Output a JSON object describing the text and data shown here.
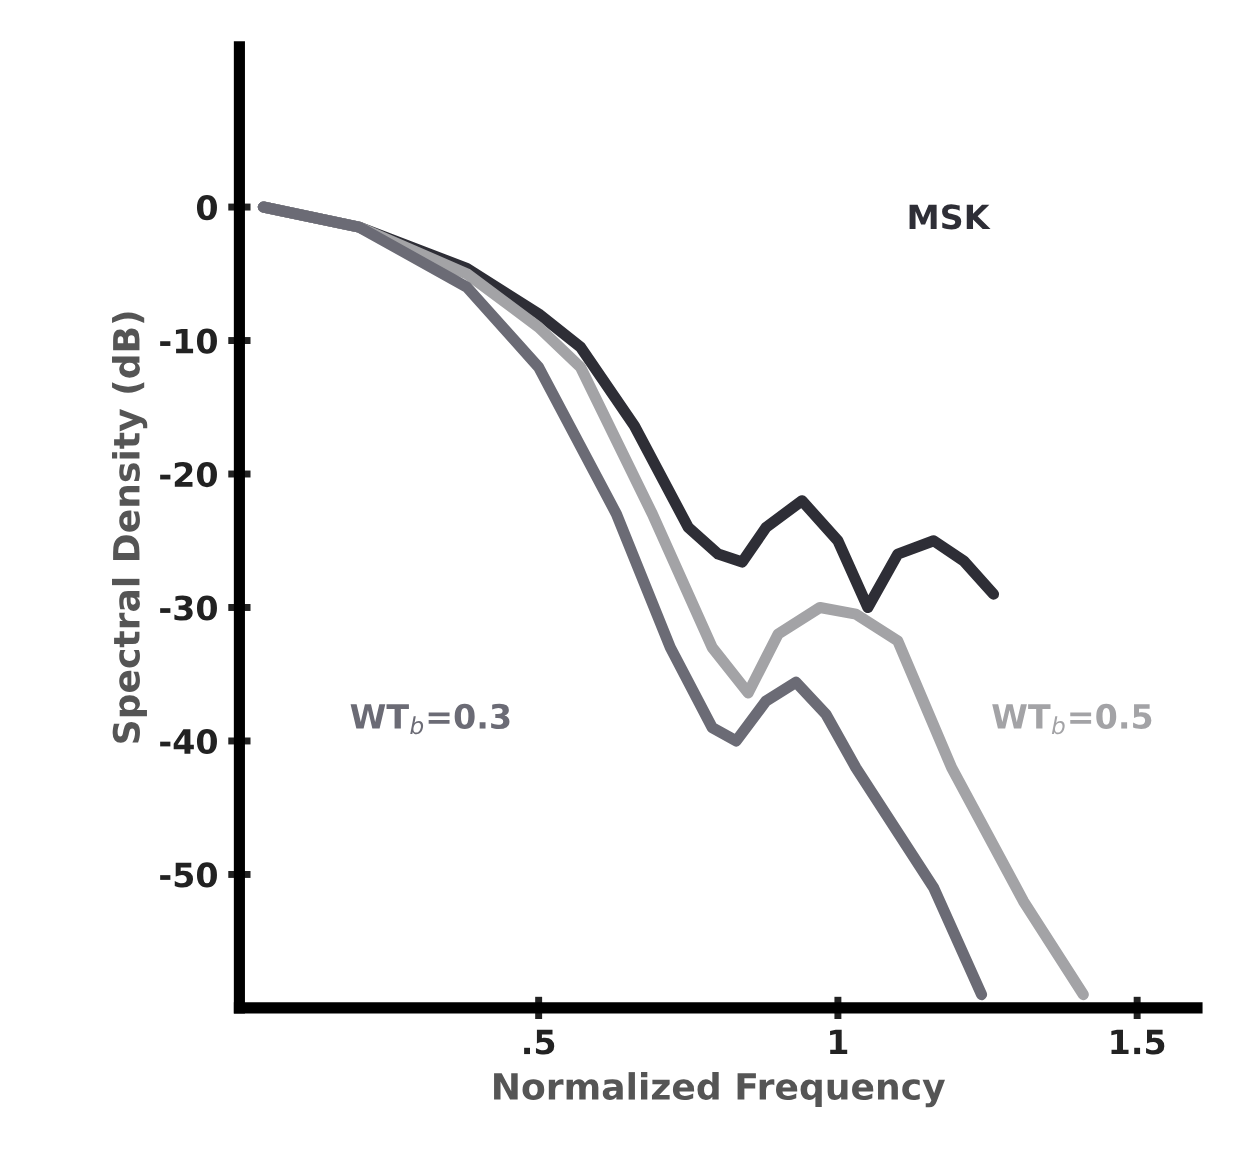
{
  "chart_data": {
    "type": "line",
    "xlabel": "Normalized Frequency",
    "ylabel": "Spectral Density (dB)",
    "xlim": [
      0,
      1.6
    ],
    "ylim": [
      -60,
      12
    ],
    "xticks": [
      {
        "value": 0.5,
        "label": ".5"
      },
      {
        "value": 1,
        "label": "1"
      },
      {
        "value": 1.5,
        "label": "1.5"
      }
    ],
    "yticks": [
      0,
      -10,
      -20,
      -30,
      -40,
      -50
    ],
    "grid": false,
    "legend": false,
    "marker": "none",
    "line_style": "solid",
    "series": [
      {
        "name": "MSK",
        "color": "#2e2e36",
        "x": [
          0.04,
          0.2,
          0.38,
          0.5,
          0.57,
          0.66,
          0.75,
          0.8,
          0.84,
          0.88,
          0.94,
          1.0,
          1.05,
          1.1,
          1.16,
          1.21,
          1.26
        ],
        "values": [
          0,
          -1.5,
          -4.6,
          -8,
          -10.5,
          -16.4,
          -24,
          -26,
          -26.6,
          -24,
          -22,
          -25,
          -30,
          -26,
          -25,
          -26.5,
          -29
        ]
      },
      {
        "name": "WT$_{b}$=0.5",
        "color": "#a3a3a6",
        "x": [
          0.04,
          0.2,
          0.38,
          0.5,
          0.57,
          0.69,
          0.79,
          0.85,
          0.9,
          0.97,
          1.03,
          1.1,
          1.19,
          1.31,
          1.41
        ],
        "values": [
          0,
          -1.5,
          -5,
          -9,
          -12,
          -23,
          -33,
          -36.4,
          -32,
          -30,
          -30.5,
          -32.5,
          -42,
          -52,
          -59
        ]
      },
      {
        "name": "WT$_{b}$=0.3",
        "color": "#6b6b75",
        "x": [
          0.04,
          0.2,
          0.38,
          0.5,
          0.63,
          0.72,
          0.79,
          0.83,
          0.88,
          0.93,
          0.98,
          1.03,
          1.16,
          1.24
        ],
        "values": [
          0,
          -1.5,
          -6,
          -12,
          -23,
          -33,
          -39,
          -40,
          -37,
          -35.6,
          -38,
          -42,
          -51,
          -59
        ]
      }
    ]
  }
}
